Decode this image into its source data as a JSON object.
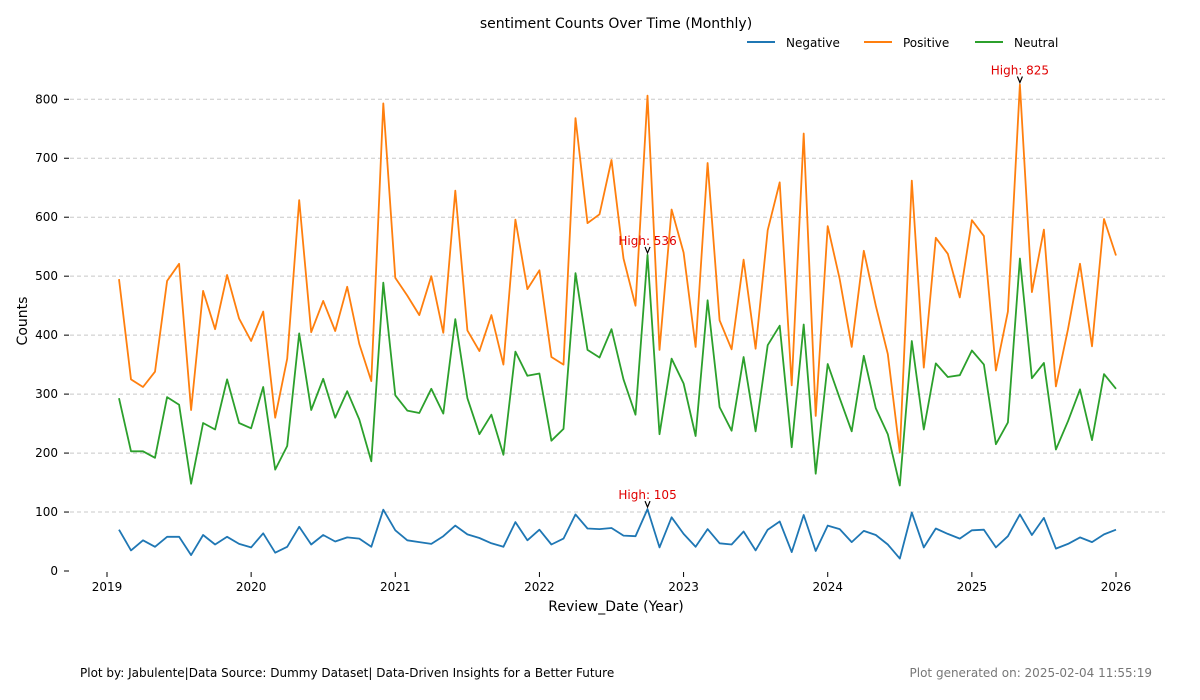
{
  "chart_data": {
    "type": "line",
    "title": "sentiment Counts Over Time (Monthly)",
    "xlabel": "Review_Date (Year)",
    "ylabel": "Counts",
    "ylim": [
      0,
      870
    ],
    "yticks": [
      0,
      100,
      200,
      300,
      400,
      500,
      600,
      700,
      800
    ],
    "xticks": [
      "2019",
      "2020",
      "2021",
      "2022",
      "2023",
      "2024",
      "2025",
      "2026"
    ],
    "grid": "horizontal dashed",
    "legend_position": "top-right",
    "x": [
      "2019-02",
      "2019-03",
      "2019-04",
      "2019-05",
      "2019-06",
      "2019-07",
      "2019-08",
      "2019-09",
      "2019-10",
      "2019-11",
      "2019-12",
      "2020-01",
      "2020-02",
      "2020-03",
      "2020-04",
      "2020-05",
      "2020-06",
      "2020-07",
      "2020-08",
      "2020-09",
      "2020-10",
      "2020-11",
      "2020-12",
      "2021-01",
      "2021-02",
      "2021-03",
      "2021-04",
      "2021-05",
      "2021-06",
      "2021-07",
      "2021-08",
      "2021-09",
      "2021-10",
      "2021-11",
      "2021-12",
      "2022-01",
      "2022-02",
      "2022-03",
      "2022-04",
      "2022-05",
      "2022-06",
      "2022-07",
      "2022-08",
      "2022-09",
      "2022-10",
      "2022-11",
      "2022-12",
      "2023-01",
      "2023-02",
      "2023-03",
      "2023-04",
      "2023-05",
      "2023-06",
      "2023-07",
      "2023-08",
      "2023-09",
      "2023-10",
      "2023-11",
      "2023-12",
      "2024-01",
      "2024-02",
      "2024-03",
      "2024-04",
      "2024-05",
      "2024-06",
      "2024-07",
      "2024-08",
      "2024-09",
      "2024-10",
      "2024-11",
      "2024-12",
      "2025-01",
      "2025-02",
      "2025-03",
      "2025-04",
      "2025-05",
      "2025-06",
      "2025-07",
      "2025-08",
      "2025-09",
      "2025-10",
      "2025-11",
      "2025-12",
      "2026-01"
    ],
    "series": [
      {
        "name": "Negative",
        "color": "#1f77b4",
        "values": [
          70,
          35,
          52,
          41,
          58,
          58,
          27,
          61,
          45,
          58,
          46,
          40,
          64,
          31,
          41,
          75,
          45,
          61,
          50,
          57,
          55,
          41,
          104,
          69,
          52,
          49,
          46,
          59,
          77,
          62,
          56,
          47,
          41,
          83,
          52,
          70,
          45,
          55,
          96,
          72,
          71,
          73,
          60,
          59,
          105,
          40,
          91,
          63,
          41,
          71,
          47,
          45,
          67,
          35,
          70,
          84,
          32,
          95,
          34,
          77,
          71,
          49,
          68,
          61,
          45,
          21,
          99,
          40,
          72,
          63,
          55,
          69,
          70,
          40,
          59,
          96,
          61,
          90,
          38,
          46,
          57,
          49,
          62,
          70
        ]
      },
      {
        "name": "Positive",
        "color": "#ff7f0e",
        "values": [
          495,
          325,
          312,
          338,
          492,
          521,
          273,
          475,
          410,
          502,
          428,
          390,
          440,
          260,
          360,
          629,
          405,
          458,
          407,
          482,
          385,
          322,
          793,
          497,
          467,
          434,
          500,
          404,
          645,
          408,
          373,
          434,
          350,
          596,
          478,
          510,
          363,
          350,
          768,
          590,
          605,
          697,
          530,
          450,
          806,
          375,
          613,
          540,
          380,
          692,
          425,
          376,
          528,
          377,
          578,
          659,
          315,
          742,
          263,
          585,
          495,
          380,
          543,
          450,
          368,
          201,
          662,
          345,
          565,
          538,
          464,
          595,
          568,
          340,
          440,
          825,
          473,
          579,
          313,
          410,
          521,
          381,
          597,
          535
        ]
      },
      {
        "name": "Neutral",
        "color": "#2ca02c",
        "values": [
          293,
          203,
          203,
          192,
          295,
          282,
          148,
          251,
          240,
          325,
          251,
          242,
          312,
          172,
          212,
          403,
          273,
          326,
          260,
          305,
          257,
          186,
          489,
          298,
          272,
          268,
          309,
          267,
          427,
          293,
          232,
          265,
          197,
          372,
          331,
          335,
          221,
          241,
          505,
          375,
          362,
          410,
          325,
          265,
          536,
          232,
          360,
          318,
          229,
          459,
          278,
          238,
          363,
          237,
          383,
          416,
          210,
          418,
          165,
          351,
          293,
          237,
          365,
          276,
          232,
          145,
          390,
          240,
          352,
          329,
          332,
          374,
          350,
          215,
          252,
          530,
          327,
          353,
          206,
          254,
          308,
          222,
          334,
          309
        ]
      }
    ],
    "annotations": [
      {
        "text": "High: 825",
        "color": "#e00000",
        "series": "Positive",
        "x": "2025-05",
        "y": 825
      },
      {
        "text": "High: 536",
        "color": "#e00000",
        "series": "Neutral",
        "x": "2022-10",
        "y": 536
      },
      {
        "text": "High: 105",
        "color": "#e00000",
        "series": "Negative",
        "x": "2022-10",
        "y": 105
      }
    ]
  },
  "footer": {
    "left": "Plot by: Jabulente|Data Source: Dummy Dataset| Data-Driven Insights for a Better Future",
    "right": "Plot generated on: 2025-02-04 11:55:19"
  }
}
